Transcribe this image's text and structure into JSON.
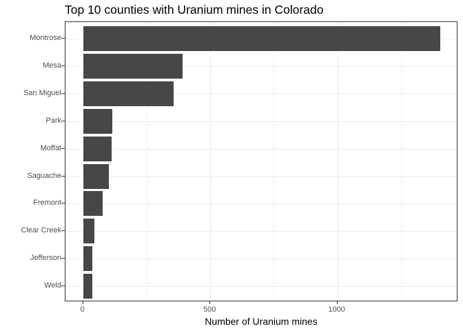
{
  "chart_data": {
    "type": "bar",
    "orientation": "horizontal",
    "title": "Top 10 counties with Uranium mines in Colorado",
    "xlabel": "Number of Uranium mines",
    "ylabel": "",
    "categories": [
      "Montrose",
      "Mesa",
      "San Miguel",
      "Park",
      "Moffat",
      "Saguache",
      "Fremont",
      "Clear Creek",
      "Jefferson",
      "Weld"
    ],
    "values": [
      1405,
      392,
      357,
      114,
      112,
      101,
      78,
      44,
      36,
      36
    ],
    "xticks": [
      "0",
      "500",
      "1000"
    ],
    "xlim": [
      -70,
      1475
    ],
    "grid": true,
    "bar_color": "#474747",
    "legend": null
  }
}
